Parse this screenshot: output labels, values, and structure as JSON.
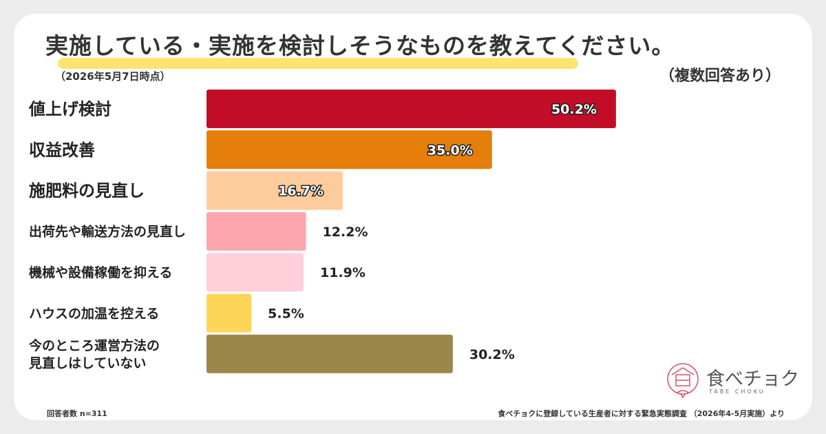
{
  "header": {
    "title": "実施している・実施を検討しそうなものを教えてください。",
    "date": "（2026年5月7日時点）",
    "note": "（複数回答あり）"
  },
  "footer": {
    "respondents": "回答者数 n=311",
    "source": "食べチョクに登録している生産者に対する緊急実態調査 （2026年4-5月実施）より"
  },
  "logo": {
    "name": "食べチョク",
    "sub": "TABE CHOKU",
    "icon": "tabechoku-logo-icon"
  },
  "chart_data": {
    "type": "bar",
    "orientation": "horizontal",
    "unit": "%",
    "categories": [
      [
        "値上げ検討"
      ],
      [
        "収益改善"
      ],
      [
        "施肥料の見直し"
      ],
      [
        "出荷先や輸送方法の見直し"
      ],
      [
        "機械や設備稼働を抑える"
      ],
      [
        "ハウスの加温を控える"
      ],
      [
        "今のところ運営方法の",
        "見直しはしていない"
      ]
    ],
    "values": [
      50.2,
      35.0,
      16.7,
      12.2,
      11.9,
      5.5,
      30.2
    ],
    "value_labels": [
      "50.2%",
      "35.0%",
      "16.7%",
      "12.2%",
      "11.9%",
      "5.5%",
      "30.2%"
    ],
    "colors": [
      "#c30d28",
      "#e57e0a",
      "#fecc9c",
      "#fda5ad",
      "#fdd0da",
      "#fdd558",
      "#9c874b"
    ],
    "label_inside": [
      true,
      true,
      true,
      false,
      false,
      false,
      false
    ],
    "xlim": [
      0,
      100
    ],
    "grid": false,
    "legend": "none"
  }
}
